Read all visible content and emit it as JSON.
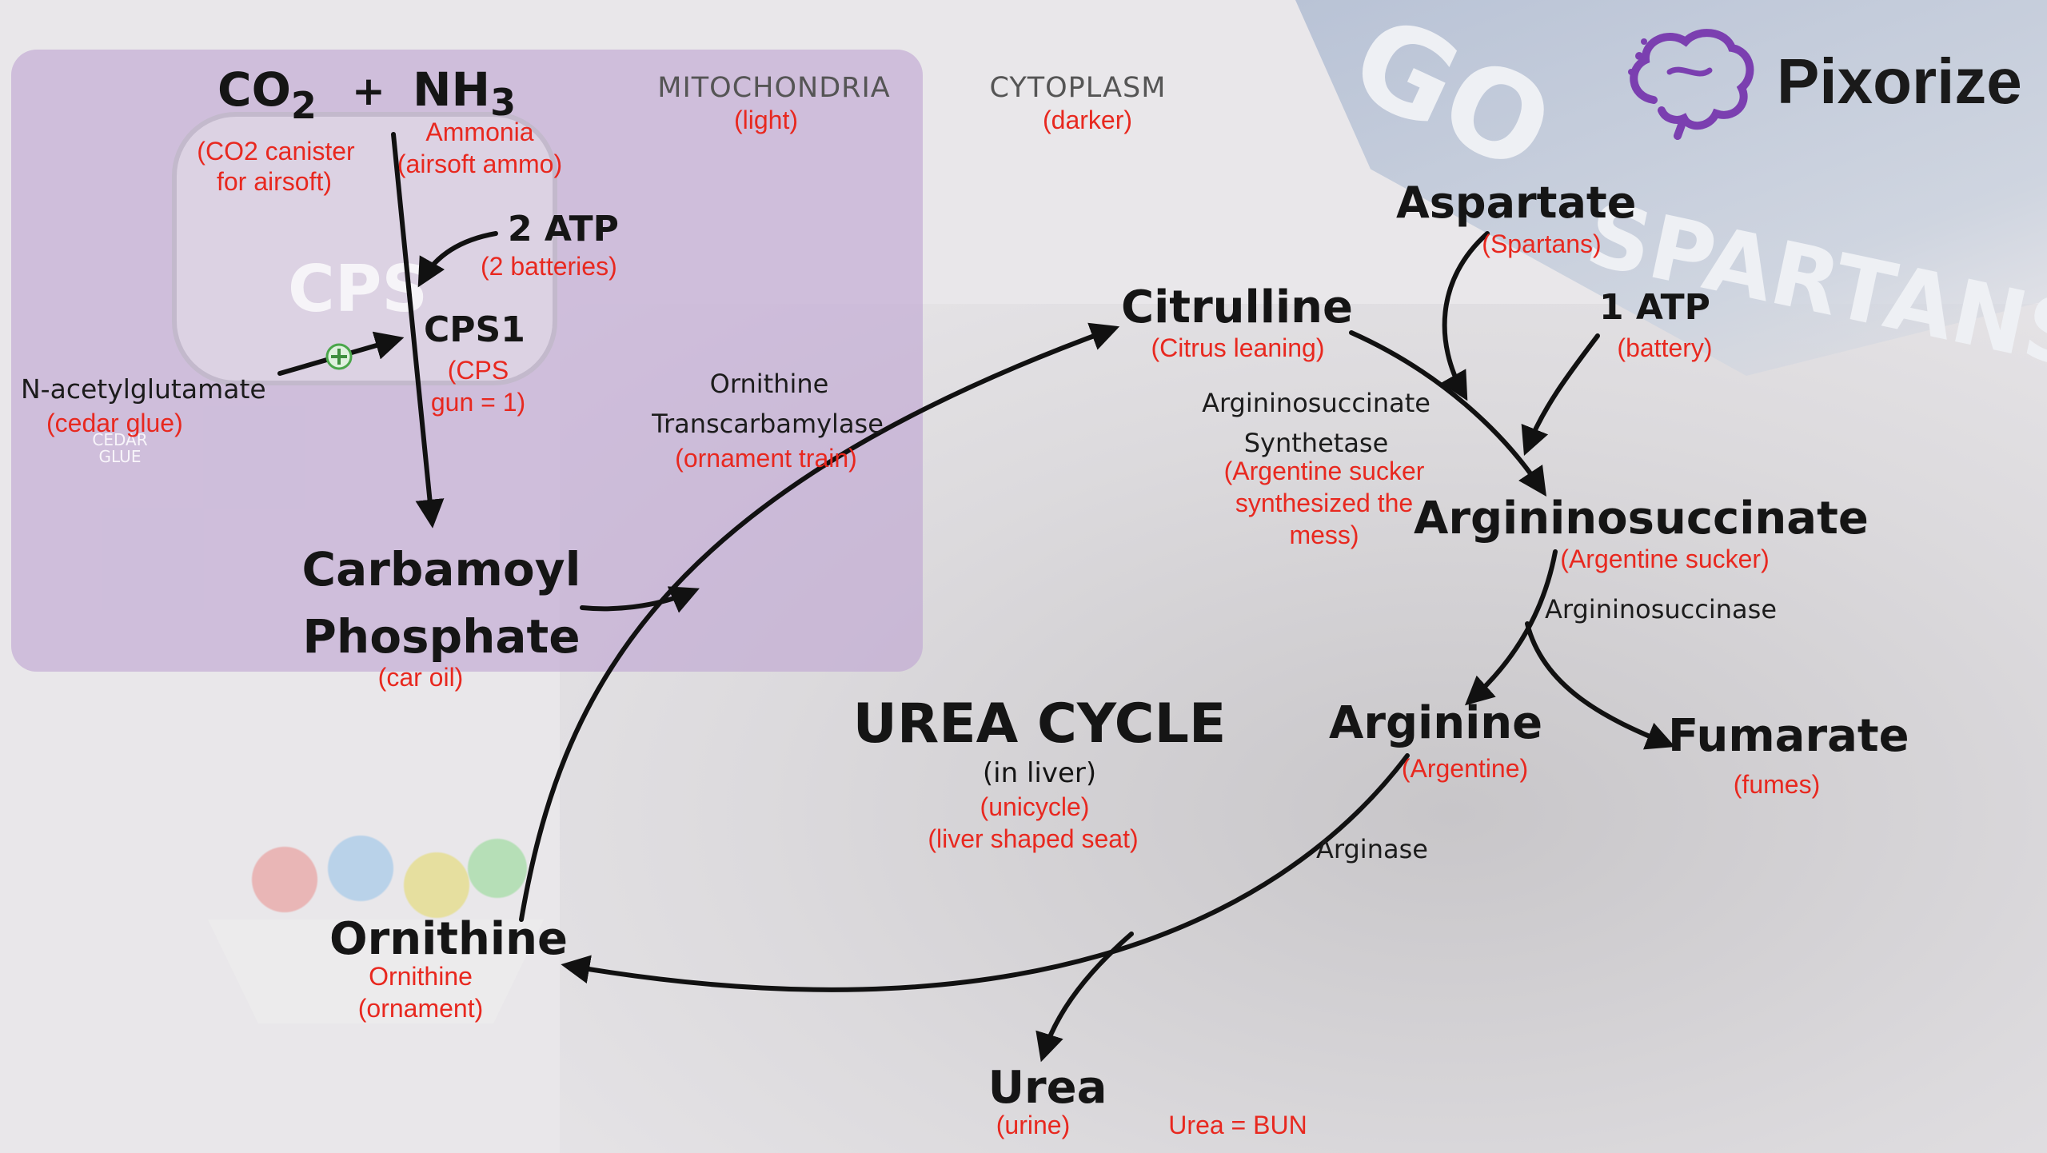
{
  "brand": {
    "name": "Pixorize",
    "icon": "brain-icon",
    "color": "#7b3fb0"
  },
  "colors": {
    "mito_panel": "#cdbad9",
    "mnemonic": "#e8281f",
    "arrow": "#111111"
  },
  "regions": {
    "mitochondria": {
      "label": "MITOCHONDRIA",
      "note": "(light)"
    },
    "cytoplasm": {
      "label": "CYTOPLASM",
      "note": "(darker)"
    }
  },
  "title": {
    "main": "UREA CYCLE",
    "sub": "(in liver)",
    "note1": "(unicycle)",
    "note2": "(liver shaped seat)"
  },
  "mito": {
    "co2": {
      "base": "CO",
      "sub": "2",
      "note1": "(CO2 canister",
      "note2": "for airsoft)"
    },
    "plus": "+",
    "nh3": {
      "base": "NH",
      "sub": "3",
      "note1": "Ammonia",
      "note2": "(airsoft ammo)"
    },
    "atp2": {
      "label": "2 ATP",
      "note": "(2 batteries)"
    },
    "cps1": {
      "label": "CPS1",
      "note1": "(CPS",
      "note2": "gun = 1)"
    },
    "nag": {
      "label": "N-acetylglutamate",
      "note": "(cedar glue)",
      "activator_icon": "plus-circle-icon"
    },
    "carbamoyl": {
      "line1": "Carbamoyl",
      "line2": "Phosphate",
      "note": "(car oil)"
    },
    "otc": {
      "line1": "Ornithine",
      "line2": "Transcarbamylase",
      "note": "(ornament train)"
    }
  },
  "cyto": {
    "citrulline": {
      "label": "Citrulline",
      "note": "(Citrus leaning)"
    },
    "aspartate": {
      "label": "Aspartate",
      "note": "(Spartans)"
    },
    "atp1": {
      "label": "1 ATP",
      "note": "(battery)"
    },
    "ass": {
      "line1": "Argininosuccinate",
      "line2": "Synthetase",
      "note1": "(Argentine sucker",
      "note2": "synthesized the",
      "note3": "mess)"
    },
    "argsucc": {
      "label": "Argininosuccinate",
      "note": "(Argentine sucker)"
    },
    "asl": {
      "label": "Argininosuccinase"
    },
    "arginine": {
      "label": "Arginine",
      "note": "(Argentine)"
    },
    "fumarate": {
      "label": "Fumarate",
      "note": "(fumes)"
    },
    "arginase": {
      "label": "Arginase"
    },
    "ornithine": {
      "label": "Ornithine",
      "note1": "Ornithine",
      "note2": "(ornament)"
    },
    "urea": {
      "label": "Urea",
      "note": "(urine)",
      "bun": "Urea = BUN"
    }
  },
  "background": {
    "banner_text1": "GO",
    "banner_text2": "SPARTANS",
    "canister_text": "CPS",
    "glue_text": "CEDAR GLUE"
  }
}
